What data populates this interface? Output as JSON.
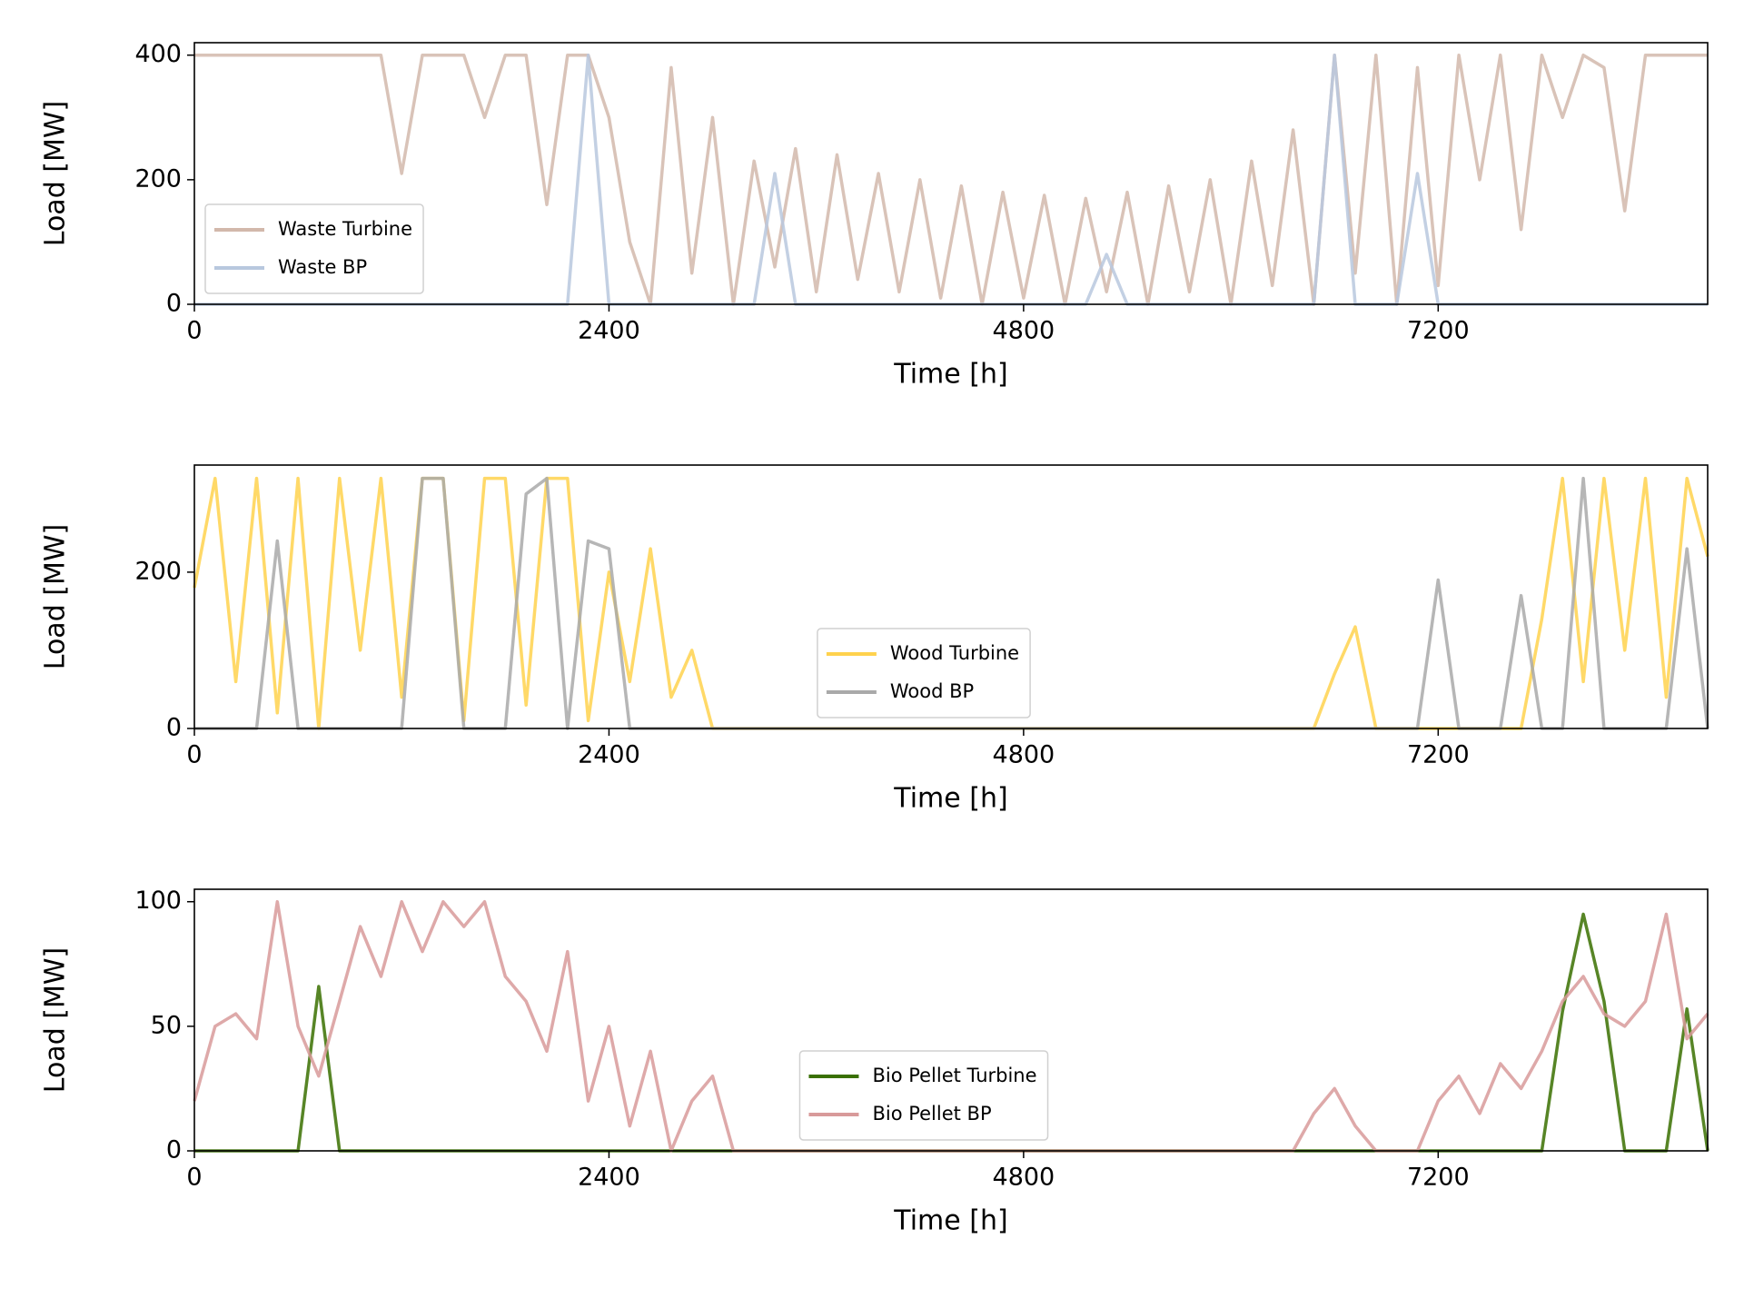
{
  "chart_data": [
    {
      "type": "line",
      "xlabel": "Time [h]",
      "ylabel": "Load [MW]",
      "xlim": [
        0,
        8760
      ],
      "ylim": [
        0,
        420
      ],
      "xticks": [
        0,
        2400,
        4800,
        7200
      ],
      "yticks": [
        0,
        200,
        400
      ],
      "legend": "lower left",
      "x": [
        0,
        120,
        240,
        360,
        480,
        600,
        720,
        840,
        960,
        1080,
        1200,
        1320,
        1440,
        1560,
        1680,
        1800,
        1920,
        2040,
        2160,
        2280,
        2400,
        2520,
        2640,
        2760,
        2880,
        3000,
        3120,
        3240,
        3360,
        3480,
        3600,
        3720,
        3840,
        3960,
        4080,
        4200,
        4320,
        4440,
        4560,
        4680,
        4800,
        4920,
        5040,
        5160,
        5280,
        5400,
        5520,
        5640,
        5760,
        5880,
        6000,
        6120,
        6240,
        6360,
        6480,
        6600,
        6720,
        6840,
        6960,
        7080,
        7200,
        7320,
        7440,
        7560,
        7680,
        7800,
        7920,
        8040,
        8160,
        8280,
        8400,
        8520,
        8640,
        8760
      ],
      "series": [
        {
          "name": "Waste Turbine",
          "color": "#d2b8ab",
          "values": [
            400,
            400,
            400,
            400,
            400,
            400,
            400,
            400,
            400,
            400,
            210,
            400,
            400,
            400,
            300,
            400,
            400,
            160,
            400,
            400,
            300,
            100,
            0,
            380,
            50,
            300,
            0,
            230,
            60,
            250,
            20,
            240,
            40,
            210,
            20,
            200,
            10,
            190,
            0,
            180,
            10,
            175,
            0,
            170,
            20,
            180,
            0,
            190,
            20,
            200,
            0,
            230,
            30,
            280,
            0,
            400,
            50,
            400,
            0,
            380,
            30,
            400,
            200,
            400,
            120,
            400,
            300,
            400,
            380,
            150,
            400,
            400,
            400,
            400
          ]
        },
        {
          "name": "Waste BP",
          "color": "#b8c8de",
          "values": [
            0,
            0,
            0,
            0,
            0,
            0,
            0,
            0,
            0,
            0,
            0,
            0,
            0,
            0,
            0,
            0,
            0,
            0,
            0,
            400,
            0,
            0,
            0,
            0,
            0,
            0,
            0,
            0,
            210,
            0,
            0,
            0,
            0,
            0,
            0,
            0,
            0,
            0,
            0,
            0,
            0,
            0,
            0,
            0,
            80,
            0,
            0,
            0,
            0,
            0,
            0,
            0,
            0,
            0,
            0,
            400,
            0,
            0,
            0,
            210,
            0,
            0,
            0,
            0,
            0,
            0,
            0,
            0,
            0,
            0,
            0,
            0,
            0,
            0
          ]
        }
      ]
    },
    {
      "type": "line",
      "xlabel": "Time [h]",
      "ylabel": "Load [MW]",
      "xlim": [
        0,
        8760
      ],
      "ylim": [
        0,
        337
      ],
      "xticks": [
        0,
        2400,
        4800,
        7200
      ],
      "yticks": [
        0,
        200
      ],
      "legend": "lower center",
      "x": [
        0,
        120,
        240,
        360,
        480,
        600,
        720,
        840,
        960,
        1080,
        1200,
        1320,
        1440,
        1560,
        1680,
        1800,
        1920,
        2040,
        2160,
        2280,
        2400,
        2520,
        2640,
        2760,
        2880,
        3000,
        3120,
        3240,
        3360,
        3480,
        3600,
        3720,
        3840,
        3960,
        4080,
        4200,
        4320,
        4440,
        4560,
        4680,
        4800,
        4920,
        5040,
        5160,
        5280,
        5400,
        5520,
        5640,
        5760,
        5880,
        6000,
        6120,
        6240,
        6360,
        6480,
        6600,
        6720,
        6840,
        6960,
        7080,
        7200,
        7320,
        7440,
        7560,
        7680,
        7800,
        7920,
        8040,
        8160,
        8280,
        8400,
        8520,
        8640,
        8760
      ],
      "series": [
        {
          "name": "Wood Turbine",
          "color": "#ffd24d",
          "values": [
            180,
            320,
            60,
            320,
            20,
            320,
            0,
            320,
            100,
            320,
            40,
            320,
            320,
            10,
            320,
            320,
            30,
            320,
            320,
            10,
            200,
            60,
            230,
            40,
            100,
            0,
            0,
            0,
            0,
            0,
            0,
            0,
            0,
            0,
            0,
            0,
            0,
            0,
            0,
            0,
            0,
            0,
            0,
            0,
            0,
            0,
            0,
            0,
            0,
            0,
            0,
            0,
            0,
            0,
            0,
            70,
            130,
            0,
            0,
            0,
            0,
            0,
            0,
            0,
            0,
            140,
            320,
            60,
            320,
            100,
            320,
            40,
            320,
            220
          ]
        },
        {
          "name": "Wood BP",
          "color": "#a9a9a9",
          "values": [
            0,
            0,
            0,
            0,
            240,
            0,
            0,
            0,
            0,
            0,
            0,
            320,
            320,
            0,
            0,
            0,
            300,
            320,
            0,
            240,
            230,
            0,
            0,
            0,
            0,
            0,
            0,
            0,
            0,
            0,
            0,
            0,
            0,
            0,
            0,
            0,
            0,
            0,
            0,
            0,
            0,
            0,
            0,
            0,
            0,
            0,
            0,
            0,
            0,
            0,
            0,
            0,
            0,
            0,
            0,
            0,
            0,
            0,
            0,
            0,
            190,
            0,
            0,
            0,
            170,
            0,
            0,
            320,
            0,
            0,
            0,
            0,
            230,
            0
          ]
        }
      ]
    },
    {
      "type": "line",
      "xlabel": "Time [h]",
      "ylabel": "Load [MW]",
      "xlim": [
        0,
        8760
      ],
      "ylim": [
        0,
        105
      ],
      "xticks": [
        0,
        2400,
        4800,
        7200
      ],
      "yticks": [
        0,
        50,
        100
      ],
      "legend": "lower center",
      "x": [
        0,
        120,
        240,
        360,
        480,
        600,
        720,
        840,
        960,
        1080,
        1200,
        1320,
        1440,
        1560,
        1680,
        1800,
        1920,
        2040,
        2160,
        2280,
        2400,
        2520,
        2640,
        2760,
        2880,
        3000,
        3120,
        3240,
        3360,
        3480,
        3600,
        3720,
        3840,
        3960,
        4080,
        4200,
        4320,
        4440,
        4560,
        4680,
        4800,
        4920,
        5040,
        5160,
        5280,
        5400,
        5520,
        5640,
        5760,
        5880,
        6000,
        6120,
        6240,
        6360,
        6480,
        6600,
        6720,
        6840,
        6960,
        7080,
        7200,
        7320,
        7440,
        7560,
        7680,
        7800,
        7920,
        8040,
        8160,
        8280,
        8400,
        8520,
        8640,
        8760
      ],
      "series": [
        {
          "name": "Bio Pellet Turbine",
          "color": "#3a7000",
          "values": [
            0,
            0,
            0,
            0,
            0,
            0,
            66,
            0,
            0,
            0,
            0,
            0,
            0,
            0,
            0,
            0,
            0,
            0,
            0,
            0,
            0,
            0,
            0,
            0,
            0,
            0,
            0,
            0,
            0,
            0,
            0,
            0,
            0,
            0,
            0,
            0,
            0,
            0,
            0,
            0,
            0,
            0,
            0,
            0,
            0,
            0,
            0,
            0,
            0,
            0,
            0,
            0,
            0,
            0,
            0,
            0,
            0,
            0,
            0,
            0,
            0,
            0,
            0,
            0,
            0,
            0,
            56,
            95,
            60,
            0,
            0,
            0,
            57,
            0
          ]
        },
        {
          "name": "Bio Pellet BP",
          "color": "#d89a9a",
          "values": [
            20,
            50,
            55,
            45,
            100,
            50,
            30,
            60,
            90,
            70,
            100,
            80,
            100,
            90,
            100,
            70,
            60,
            40,
            80,
            20,
            50,
            10,
            40,
            0,
            20,
            30,
            0,
            0,
            0,
            0,
            0,
            0,
            0,
            0,
            0,
            0,
            0,
            0,
            0,
            0,
            0,
            0,
            0,
            0,
            0,
            0,
            0,
            0,
            0,
            0,
            0,
            0,
            0,
            0,
            15,
            25,
            10,
            0,
            0,
            0,
            20,
            30,
            15,
            35,
            25,
            40,
            60,
            70,
            55,
            50,
            60,
            95,
            45,
            55
          ]
        }
      ]
    }
  ]
}
